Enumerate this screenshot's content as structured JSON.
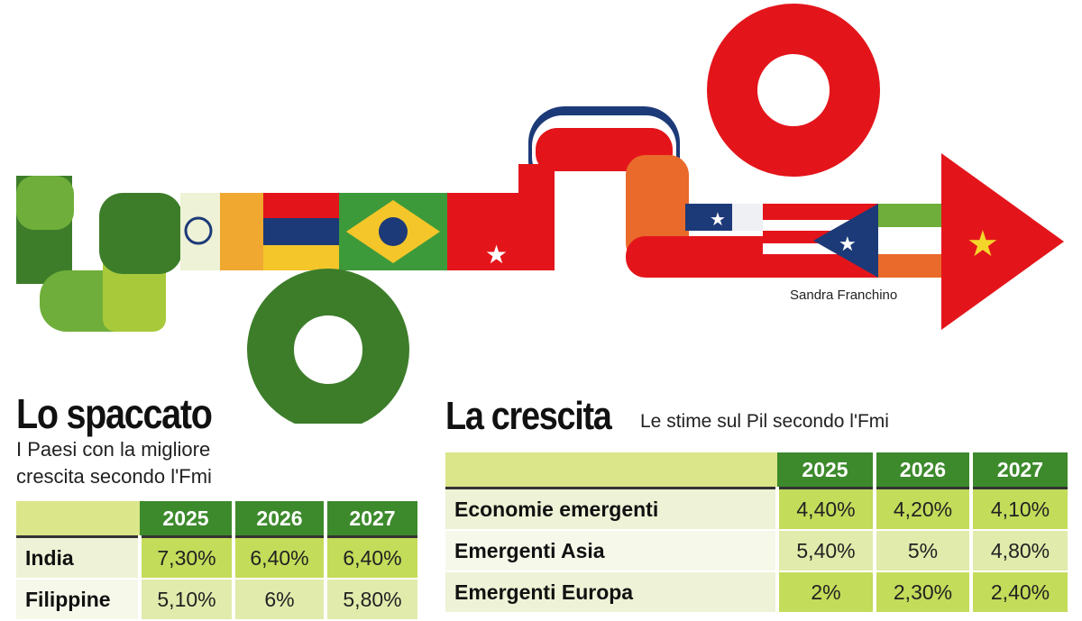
{
  "illustration": {
    "credit": "Sandra Franchino",
    "colors": {
      "dark_green": "#3d7d2a",
      "mid_green": "#6fae3a",
      "lime": "#a8c93a",
      "red": "#e3151b",
      "orange": "#e96a2a",
      "navy": "#1d3a78"
    }
  },
  "left": {
    "title": "Lo spaccato",
    "subtitle_line1": "I Paesi con la migliore",
    "subtitle_line2": "crescita secondo l'Fmi"
  },
  "right": {
    "title": "La crescita",
    "subtitle": "Le stime sul Pil secondo l'Fmi"
  },
  "chart_data": [
    {
      "type": "table",
      "title": "Lo spaccato",
      "columns": [
        "2025",
        "2026",
        "2027"
      ],
      "rows": [
        {
          "label": "India",
          "values": [
            "7,30%",
            "6,40%",
            "6,40%"
          ]
        },
        {
          "label": "Filippine",
          "values": [
            "5,10%",
            "6%",
            "5,80%"
          ]
        }
      ]
    },
    {
      "type": "table",
      "title": "La crescita",
      "columns": [
        "2025",
        "2026",
        "2027"
      ],
      "rows": [
        {
          "label": "Economie emergenti",
          "values": [
            "4,40%",
            "4,20%",
            "4,10%"
          ]
        },
        {
          "label": "Emergenti Asia",
          "values": [
            "5,40%",
            "5%",
            "4,80%"
          ]
        },
        {
          "label": "Emergenti Europa",
          "values": [
            "2%",
            "2,30%",
            "2,40%"
          ]
        }
      ]
    }
  ]
}
